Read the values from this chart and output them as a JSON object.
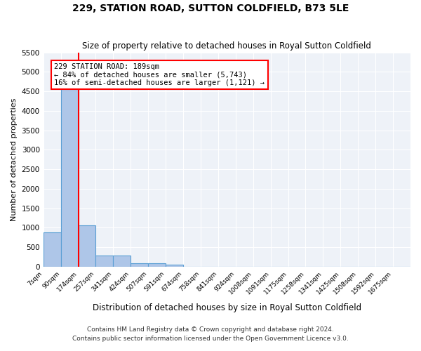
{
  "title": "229, STATION ROAD, SUTTON COLDFIELD, B73 5LE",
  "subtitle": "Size of property relative to detached houses in Royal Sutton Coldfield",
  "xlabel": "Distribution of detached houses by size in Royal Sutton Coldfield",
  "ylabel": "Number of detached properties",
  "bin_labels": [
    "7sqm",
    "90sqm",
    "174sqm",
    "257sqm",
    "341sqm",
    "424sqm",
    "507sqm",
    "591sqm",
    "674sqm",
    "758sqm",
    "841sqm",
    "924sqm",
    "1008sqm",
    "1091sqm",
    "1175sqm",
    "1258sqm",
    "1341sqm",
    "1425sqm",
    "1508sqm",
    "1592sqm",
    "1675sqm"
  ],
  "bar_values": [
    880,
    4550,
    1060,
    290,
    290,
    90,
    90,
    55,
    0,
    0,
    0,
    0,
    0,
    0,
    0,
    0,
    0,
    0,
    0,
    0,
    0
  ],
  "bar_color": "#aec6e8",
  "bar_edge_color": "#5a9fd4",
  "vline_x": 1.5,
  "vline_color": "red",
  "annotation_text": "229 STATION ROAD: 189sqm\n← 84% of detached houses are smaller (5,743)\n16% of semi-detached houses are larger (1,121) →",
  "annotation_box_color": "white",
  "annotation_box_edge_color": "red",
  "ylim": [
    0,
    5500
  ],
  "yticks": [
    0,
    500,
    1000,
    1500,
    2000,
    2500,
    3000,
    3500,
    4000,
    4500,
    5000,
    5500
  ],
  "background_color": "#eef2f8",
  "grid_color": "white",
  "footer_line1": "Contains HM Land Registry data © Crown copyright and database right 2024.",
  "footer_line2": "Contains public sector information licensed under the Open Government Licence v3.0."
}
